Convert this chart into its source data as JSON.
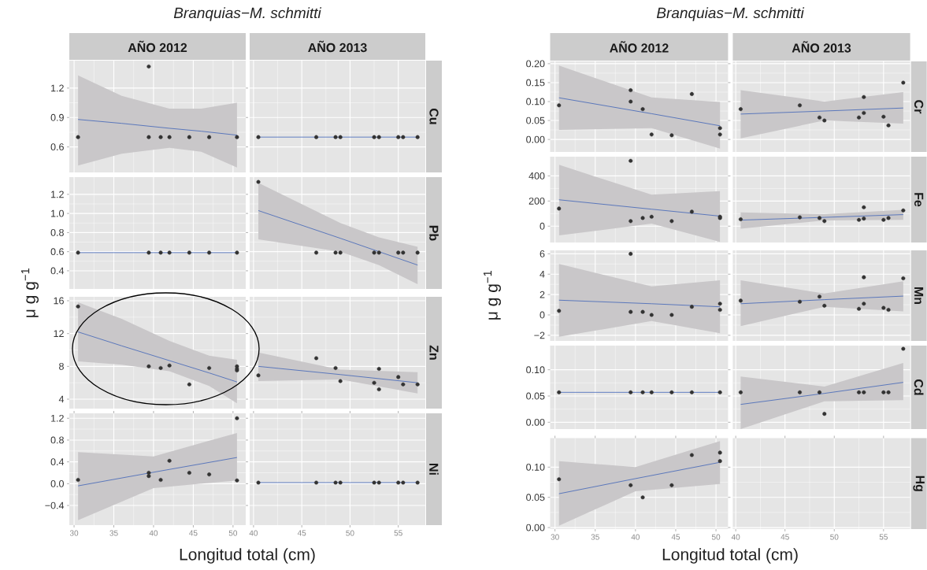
{
  "chart_data": [
    {
      "type": "scatter",
      "title": "Branquias−M. schmitti",
      "subtitle": "AÑO 2012",
      "ylabel": "μ g g$^{−1}$",
      "xlim": [
        29.4,
        51.6
      ],
      "ylim": [
        0.34,
        1.48
      ],
      "xticks": [
        30,
        35,
        40,
        45,
        50
      ],
      "yticks": [
        0.6,
        0.9,
        1.2
      ],
      "tick_labels": "y",
      "grid": true,
      "series": [
        {
          "type": "line",
          "color": "#3f63b8",
          "x": [
            30.5,
            36,
            42,
            46,
            50.5
          ],
          "values": [
            0.88,
            0.84,
            0.79,
            0.76,
            0.72
          ],
          "upper": [
            1.33,
            1.12,
            0.99,
            0.99,
            1.05
          ],
          "lower": [
            0.41,
            0.53,
            0.59,
            0.55,
            0.39
          ]
        },
        {
          "type": "scatter",
          "color": "#333333",
          "x": [
            30.5,
            39.4,
            39.4,
            40.9,
            42,
            44.5,
            47,
            50.5
          ],
          "values": [
            0.7,
            1.42,
            0.7,
            0.7,
            0.7,
            0.7,
            0.7,
            0.7
          ]
        }
      ]
    },
    {
      "type": "scatter",
      "subtitle": "AÑO 2013",
      "y2label": "Cu",
      "xlim": [
        39.6,
        57.8
      ],
      "ylim": [
        0.34,
        1.48
      ],
      "xticks": [
        40,
        45,
        50,
        55
      ],
      "yticks": [
        0.6,
        0.9,
        1.2
      ],
      "tick_labels": false,
      "grid": true,
      "series": [
        {
          "type": "line",
          "color": "#3f63b8",
          "x": [
            40.5,
            57
          ],
          "values": [
            0.7,
            0.7
          ]
        },
        {
          "type": "scatter",
          "color": "#333333",
          "x": [
            40.5,
            46.5,
            48.5,
            49,
            52.5,
            53,
            55,
            55.5,
            57
          ],
          "values": [
            0.7,
            0.7,
            0.7,
            0.7,
            0.7,
            0.7,
            0.7,
            0.7,
            0.7
          ]
        }
      ]
    },
    {
      "type": "scatter",
      "xlim": [
        29.4,
        51.6
      ],
      "ylim": [
        0.21,
        1.38
      ],
      "xticks": [
        30,
        35,
        40,
        45,
        50
      ],
      "yticks": [
        0.4,
        0.6,
        0.8,
        {
          "value": 1,
          "label": "1.0"
        },
        1.2
      ],
      "tick_labels": "y",
      "grid": true,
      "series": [
        {
          "type": "line",
          "color": "#3f63b8",
          "x": [
            30.5,
            50.5
          ],
          "values": [
            0.59,
            0.59
          ]
        },
        {
          "type": "scatter",
          "color": "#333333",
          "x": [
            30.5,
            39.4,
            40.9,
            42,
            44.5,
            47,
            50.5
          ],
          "values": [
            0.59,
            0.59,
            0.59,
            0.59,
            0.59,
            0.59,
            0.59
          ]
        }
      ]
    },
    {
      "type": "scatter",
      "y2label": "Pb",
      "xlim": [
        39.6,
        57.8
      ],
      "ylim": [
        0.21,
        1.38
      ],
      "xticks": [
        40,
        45,
        50,
        55
      ],
      "yticks": [
        0.4,
        0.6,
        0.8,
        1,
        1.2
      ],
      "tick_labels": false,
      "grid": true,
      "series": [
        {
          "type": "line",
          "color": "#3f63b8",
          "x": [
            40.5,
            49,
            53,
            57
          ],
          "values": [
            1.03,
            0.74,
            0.6,
            0.46
          ],
          "upper": [
            1.32,
            0.9,
            0.75,
            0.65
          ],
          "lower": [
            0.73,
            0.6,
            0.46,
            0.26
          ]
        },
        {
          "type": "scatter",
          "color": "#333333",
          "x": [
            40.5,
            46.5,
            48.5,
            49,
            52.5,
            53,
            55,
            55.5,
            57
          ],
          "values": [
            1.33,
            0.59,
            0.59,
            0.59,
            0.59,
            0.59,
            0.59,
            0.59,
            0.59
          ]
        }
      ]
    },
    {
      "type": "scatter",
      "xlim": [
        29.4,
        51.6
      ],
      "ylim": [
        2.85,
        16.48
      ],
      "xticks": [
        30,
        35,
        40,
        45,
        50
      ],
      "yticks": [
        4,
        8,
        12,
        16
      ],
      "tick_labels": "y",
      "grid": true,
      "series": [
        {
          "type": "line",
          "color": "#3f63b8",
          "x": [
            30.5,
            36,
            42,
            47,
            50.5
          ],
          "values": [
            12.2,
            10.5,
            8.7,
            7.2,
            6.1
          ],
          "upper": [
            15.8,
            13.8,
            11.1,
            9.3,
            8.8
          ],
          "lower": [
            8.6,
            8.2,
            7.4,
            5.6,
            3.5
          ]
        },
        {
          "type": "scatter",
          "color": "#333333",
          "x": [
            30.5,
            39.4,
            40.9,
            42,
            44.5,
            47,
            50.5,
            50.5,
            50.5
          ],
          "values": [
            15.3,
            8.0,
            7.8,
            8.1,
            5.8,
            7.8,
            8.0,
            7.7,
            7.5
          ]
        }
      ]
    },
    {
      "type": "scatter",
      "y2label": "Zn",
      "xlim": [
        39.6,
        57.8
      ],
      "ylim": [
        2.85,
        16.48
      ],
      "xticks": [
        40,
        45,
        50,
        55
      ],
      "yticks": [
        4,
        8,
        12,
        16
      ],
      "tick_labels": false,
      "grid": true,
      "series": [
        {
          "type": "line",
          "color": "#3f63b8",
          "x": [
            40.5,
            49,
            57
          ],
          "values": [
            8.0,
            7.0,
            6.0
          ],
          "upper": [
            9.7,
            7.6,
            7.3
          ],
          "lower": [
            6.2,
            6.4,
            4.7
          ]
        },
        {
          "type": "scatter",
          "color": "#333333",
          "x": [
            40.5,
            46.5,
            48.5,
            49,
            52.5,
            53,
            53,
            55,
            55.5,
            57
          ],
          "values": [
            6.9,
            9.0,
            7.8,
            6.2,
            6.0,
            7.7,
            5.2,
            6.7,
            5.8,
            5.8
          ]
        }
      ]
    },
    {
      "type": "scatter",
      "xlabel": "Longitud total (cm)",
      "xlim": [
        29.4,
        51.6
      ],
      "ylim": [
        -0.76,
        1.29
      ],
      "xticks": [
        30,
        35,
        40,
        45,
        50
      ],
      "yticks": [
        {
          "value": -0.4,
          "label": "−0.4"
        },
        {
          "value": 0,
          "label": "0.0"
        },
        0.4,
        0.8,
        1.2
      ],
      "grid": true,
      "series": [
        {
          "type": "line",
          "color": "#3f63b8",
          "x": [
            30.5,
            40,
            50.5
          ],
          "values": [
            -0.04,
            0.21,
            0.48
          ],
          "upper": [
            0.58,
            0.5,
            0.93
          ],
          "lower": [
            -0.67,
            -0.08,
            0.06
          ]
        },
        {
          "type": "scatter",
          "color": "#333333",
          "x": [
            30.5,
            39.4,
            39.4,
            40.9,
            42,
            44.5,
            47,
            50.5,
            50.5
          ],
          "values": [
            0.07,
            0.2,
            0.14,
            0.07,
            0.42,
            0.2,
            0.17,
            1.2,
            0.06
          ]
        }
      ]
    },
    {
      "type": "scatter",
      "y2label": "Ni",
      "xlim": [
        39.6,
        57.8
      ],
      "ylim": [
        -0.76,
        1.29
      ],
      "xticks": [
        40,
        45,
        50,
        55
      ],
      "yticks": [
        -0.4,
        0,
        0.4,
        0.8,
        1.2
      ],
      "tick_labels": "x",
      "grid": true,
      "series": [
        {
          "type": "line",
          "color": "#3f63b8",
          "x": [
            40.5,
            57
          ],
          "values": [
            0.02,
            0.02
          ]
        },
        {
          "type": "scatter",
          "color": "#333333",
          "x": [
            40.5,
            46.5,
            48.5,
            49,
            52.5,
            53,
            55,
            55.5,
            57
          ],
          "values": [
            0.02,
            0.02,
            0.02,
            0.02,
            0.02,
            0.02,
            0.02,
            0.02,
            0.02
          ]
        }
      ]
    },
    {
      "type": "scatter",
      "title": "Branquias−M. schmitti",
      "subtitle": "AÑO 2012",
      "xlim": [
        29.4,
        51.5
      ],
      "ylim": [
        -0.033,
        0.206
      ],
      "xticks": [
        30,
        35,
        40,
        45,
        50
      ],
      "yticks": [
        {
          "value": 0,
          "label": "0.00"
        },
        0.05,
        {
          "value": 0.1,
          "label": "0.10"
        },
        0.15,
        {
          "value": 0.2,
          "label": "0.20"
        }
      ],
      "tick_labels": "y",
      "grid": true,
      "series": [
        {
          "type": "line",
          "color": "#3f63b8",
          "x": [
            30.5,
            42,
            50.5
          ],
          "values": [
            0.11,
            0.068,
            0.036
          ],
          "upper": [
            0.195,
            0.111,
            0.099
          ],
          "lower": [
            0.025,
            0.03,
            -0.024
          ]
        },
        {
          "type": "scatter",
          "color": "#333333",
          "x": [
            30.5,
            39.4,
            39.4,
            40.9,
            42,
            44.5,
            47,
            50.5,
            50.5
          ],
          "values": [
            0.09,
            0.13,
            0.1,
            0.08,
            0.013,
            0.011,
            0.12,
            0.03,
            0.013
          ]
        }
      ]
    },
    {
      "type": "scatter",
      "subtitle": "AÑO 2013",
      "y2label": "Cr",
      "xlim": [
        39.7,
        57.7
      ],
      "ylim": [
        -0.033,
        0.206
      ],
      "xticks": [
        40,
        45,
        50,
        55
      ],
      "yticks": [
        0,
        0.05,
        0.1,
        0.15,
        0.2
      ],
      "tick_labels": false,
      "grid": true,
      "series": [
        {
          "type": "line",
          "color": "#3f63b8",
          "x": [
            40.5,
            49,
            57
          ],
          "values": [
            0.067,
            0.075,
            0.083
          ],
          "upper": [
            0.13,
            0.1,
            0.125
          ],
          "lower": [
            0.003,
            0.05,
            0.042
          ]
        },
        {
          "type": "scatter",
          "color": "#333333",
          "x": [
            40.5,
            46.5,
            48.5,
            49,
            52.5,
            53,
            53,
            55,
            55.5,
            57
          ],
          "values": [
            0.08,
            0.09,
            0.058,
            0.05,
            0.058,
            0.112,
            0.07,
            0.06,
            0.037,
            0.15
          ]
        }
      ]
    },
    {
      "type": "scatter",
      "xlim": [
        29.4,
        51.5
      ],
      "ylim": [
        -130,
        553
      ],
      "xticks": [
        30,
        35,
        40,
        45,
        50
      ],
      "yticks": [
        0,
        200,
        400
      ],
      "tick_labels": "y",
      "grid": true,
      "series": [
        {
          "type": "line",
          "color": "#3f63b8",
          "x": [
            30.5,
            42,
            50.5
          ],
          "values": [
            210,
            135,
            80
          ],
          "upper": [
            488,
            250,
            279
          ],
          "lower": [
            -74,
            20,
            -125
          ]
        },
        {
          "type": "scatter",
          "color": "#333333",
          "x": [
            30.5,
            39.4,
            39.4,
            40.9,
            42,
            44.5,
            47,
            50.5,
            50.5
          ],
          "values": [
            140,
            520,
            40,
            65,
            75,
            40,
            115,
            75,
            65
          ]
        }
      ]
    },
    {
      "type": "scatter",
      "y2label": "Fe",
      "xlim": [
        39.7,
        57.7
      ],
      "ylim": [
        -130,
        553
      ],
      "xticks": [
        40,
        45,
        50,
        55
      ],
      "yticks": [
        0,
        200,
        400
      ],
      "tick_labels": false,
      "grid": true,
      "series": [
        {
          "type": "line",
          "color": "#3f63b8",
          "x": [
            40.5,
            49,
            57
          ],
          "values": [
            48,
            70,
            92
          ],
          "upper": [
            110,
            95,
            130
          ],
          "lower": [
            -20,
            45,
            50
          ]
        },
        {
          "type": "scatter",
          "color": "#333333",
          "x": [
            40.5,
            46.5,
            48.5,
            49,
            52.5,
            53,
            53,
            55,
            55.5,
            57
          ],
          "values": [
            55,
            70,
            65,
            40,
            50,
            150,
            60,
            50,
            65,
            125
          ]
        }
      ]
    },
    {
      "type": "scatter",
      "ylabel": "μ g g$^{−1}$",
      "xlim": [
        29.4,
        51.5
      ],
      "ylim": [
        -2.55,
        6.34
      ],
      "xticks": [
        30,
        35,
        40,
        45,
        50
      ],
      "yticks": [
        {
          "value": -2,
          "label": "−2"
        },
        0,
        2,
        4,
        6
      ],
      "tick_labels": "y",
      "grid": true,
      "series": [
        {
          "type": "line",
          "color": "#3f63b8",
          "x": [
            30.5,
            42,
            50.5
          ],
          "values": [
            1.45,
            1.1,
            0.8
          ],
          "upper": [
            5.0,
            2.8,
            3.4
          ],
          "lower": [
            -2.15,
            -0.6,
            -1.8
          ]
        },
        {
          "type": "scatter",
          "color": "#333333",
          "x": [
            30.5,
            39.4,
            39.4,
            40.9,
            42,
            44.5,
            47,
            50.5,
            50.5
          ],
          "values": [
            0.4,
            6.0,
            0.3,
            0.3,
            0.0,
            0.0,
            0.8,
            1.1,
            0.5
          ]
        }
      ]
    },
    {
      "type": "scatter",
      "y2label": "Mn",
      "xlim": [
        39.7,
        57.7
      ],
      "ylim": [
        -2.55,
        6.34
      ],
      "xticks": [
        40,
        45,
        50,
        55
      ],
      "yticks": [
        -2,
        0,
        2,
        4,
        6
      ],
      "tick_labels": false,
      "grid": true,
      "series": [
        {
          "type": "line",
          "color": "#3f63b8",
          "x": [
            40.5,
            49,
            57
          ],
          "values": [
            1.1,
            1.5,
            1.85
          ],
          "upper": [
            3.4,
            2.1,
            3.3
          ],
          "lower": [
            -1.1,
            0.8,
            0.35
          ]
        },
        {
          "type": "scatter",
          "color": "#333333",
          "x": [
            40.5,
            46.5,
            48.5,
            49,
            52.5,
            53,
            53,
            55,
            55.5,
            57
          ],
          "values": [
            1.4,
            1.3,
            1.8,
            0.9,
            0.6,
            3.7,
            1.1,
            0.7,
            0.5,
            3.6
          ]
        }
      ]
    },
    {
      "type": "scatter",
      "xlim": [
        29.4,
        51.5
      ],
      "ylim": [
        -0.013,
        0.146
      ],
      "xticks": [
        30,
        35,
        40,
        45,
        50
      ],
      "yticks": [
        {
          "value": 0,
          "label": "0.00"
        },
        0.05,
        {
          "value": 0.1,
          "label": "0.10"
        }
      ],
      "tick_labels": "y",
      "grid": true,
      "series": [
        {
          "type": "line",
          "color": "#3f63b8",
          "x": [
            30.5,
            50.5
          ],
          "values": [
            0.057,
            0.057
          ]
        },
        {
          "type": "scatter",
          "color": "#333333",
          "x": [
            30.5,
            39.4,
            40.9,
            42,
            44.5,
            47,
            50.5
          ],
          "values": [
            0.057,
            0.057,
            0.057,
            0.057,
            0.057,
            0.057,
            0.057
          ]
        }
      ]
    },
    {
      "type": "scatter",
      "y2label": "Cd",
      "xlim": [
        39.7,
        57.7
      ],
      "ylim": [
        -0.013,
        0.146
      ],
      "xticks": [
        40,
        45,
        50,
        55
      ],
      "yticks": [
        0,
        0.05,
        0.1
      ],
      "tick_labels": false,
      "grid": true,
      "series": [
        {
          "type": "line",
          "color": "#3f63b8",
          "x": [
            40.5,
            49,
            57
          ],
          "values": [
            0.034,
            0.055,
            0.076
          ],
          "upper": [
            0.087,
            0.068,
            0.113
          ],
          "lower": [
            -0.013,
            0.04,
            0.042
          ]
        },
        {
          "type": "scatter",
          "color": "#333333",
          "x": [
            40.5,
            46.5,
            48.5,
            49,
            52.5,
            53,
            55,
            55.5,
            57
          ],
          "values": [
            0.057,
            0.057,
            0.057,
            0.016,
            0.057,
            0.057,
            0.057,
            0.057,
            0.14
          ]
        }
      ]
    },
    {
      "type": "scatter",
      "xlabel": "Longitud total (cm)",
      "xlim": [
        29.4,
        51.5
      ],
      "ylim": [
        -0.0025,
        0.148
      ],
      "xticks": [
        30,
        35,
        40,
        45,
        50
      ],
      "yticks": [
        {
          "value": 0,
          "label": "0.00"
        },
        0.05,
        {
          "value": 0.1,
          "label": "0.10"
        }
      ],
      "grid": true,
      "series": [
        {
          "type": "line",
          "color": "#3f63b8",
          "x": [
            30.5,
            40,
            50.5
          ],
          "values": [
            0.056,
            0.081,
            0.108
          ],
          "upper": [
            0.11,
            0.1,
            0.143
          ],
          "lower": [
            0.003,
            0.06,
            0.072
          ]
        },
        {
          "type": "scatter",
          "color": "#333333",
          "x": [
            30.5,
            39.4,
            40.9,
            44.5,
            47,
            50.5,
            50.5
          ],
          "values": [
            0.08,
            0.07,
            0.05,
            0.07,
            0.12,
            0.124,
            0.11
          ]
        }
      ]
    },
    {
      "type": "scatter",
      "y2label": "Hg",
      "xlim": [
        39.7,
        57.7
      ],
      "ylim": [
        -0.0025,
        0.148
      ],
      "xticks": [
        40,
        45,
        50,
        55
      ],
      "yticks": [
        0,
        0.05,
        0.1
      ],
      "tick_labels": "x",
      "grid": true
    }
  ]
}
